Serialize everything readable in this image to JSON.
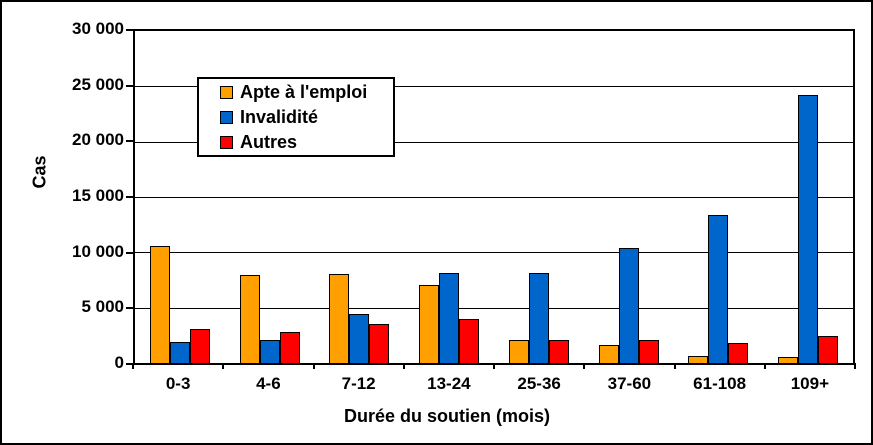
{
  "chart_data": {
    "type": "bar",
    "title": "",
    "xlabel": "Durée du soutien (mois)",
    "ylabel": "Cas",
    "categories": [
      "0-3",
      "4-6",
      "7-12",
      "13-24",
      "25-36",
      "37-60",
      "61-108",
      "109+"
    ],
    "series": [
      {
        "name": "Apte à l'emploi",
        "color": "#FFA000",
        "values": [
          10600,
          7950,
          8050,
          7050,
          2100,
          1600,
          600,
          500
        ]
      },
      {
        "name": "Invalidité",
        "color": "#0066CC",
        "values": [
          1900,
          2050,
          4450,
          8150,
          8150,
          10400,
          13400,
          24200
        ]
      },
      {
        "name": "Autres",
        "color": "#FF0000",
        "values": [
          3050,
          2800,
          3550,
          4000,
          2100,
          2100,
          1800,
          2400
        ]
      }
    ],
    "ylim": [
      0,
      30000
    ],
    "ytick_step": 5000,
    "ytick_labels": [
      "0",
      "5 000",
      "10 000",
      "15 000",
      "20 000",
      "25 000",
      "30 000"
    ],
    "grid": "horizontal",
    "legend_position": "upper-center-inside",
    "colors": {
      "axis": "#000000",
      "gridline": "#000000",
      "background": "#FFFFFF",
      "bar_outline": "#000000"
    }
  }
}
